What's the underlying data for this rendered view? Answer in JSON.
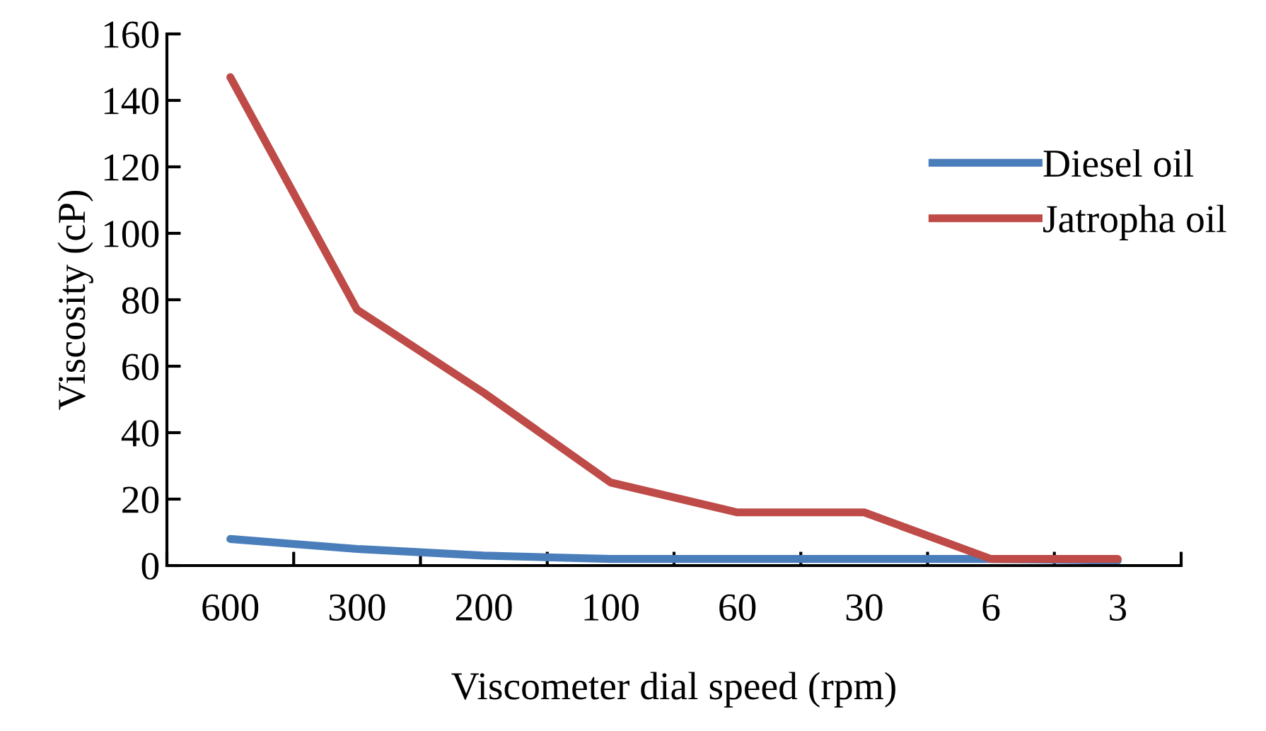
{
  "chart_data": {
    "type": "line",
    "xlabel": "Viscometer dial speed (rpm)",
    "ylabel": "Viscosity (cP)",
    "categories": [
      "600",
      "300",
      "200",
      "100",
      "60",
      "30",
      "6",
      "3"
    ],
    "series": [
      {
        "name": "Diesel oil",
        "color": "#4a7ebb",
        "values": [
          8,
          5,
          3,
          2,
          2,
          2,
          2,
          1.5
        ]
      },
      {
        "name": "Jatropha oil",
        "color": "#be4b48",
        "values": [
          147,
          77,
          52,
          25,
          16,
          16,
          2,
          2
        ]
      }
    ],
    "ylim": [
      0,
      160
    ],
    "yticks": [
      0,
      20,
      40,
      60,
      80,
      100,
      120,
      140,
      160
    ],
    "grid": false,
    "legend": "right",
    "marker": "none",
    "line_style": "solid"
  }
}
